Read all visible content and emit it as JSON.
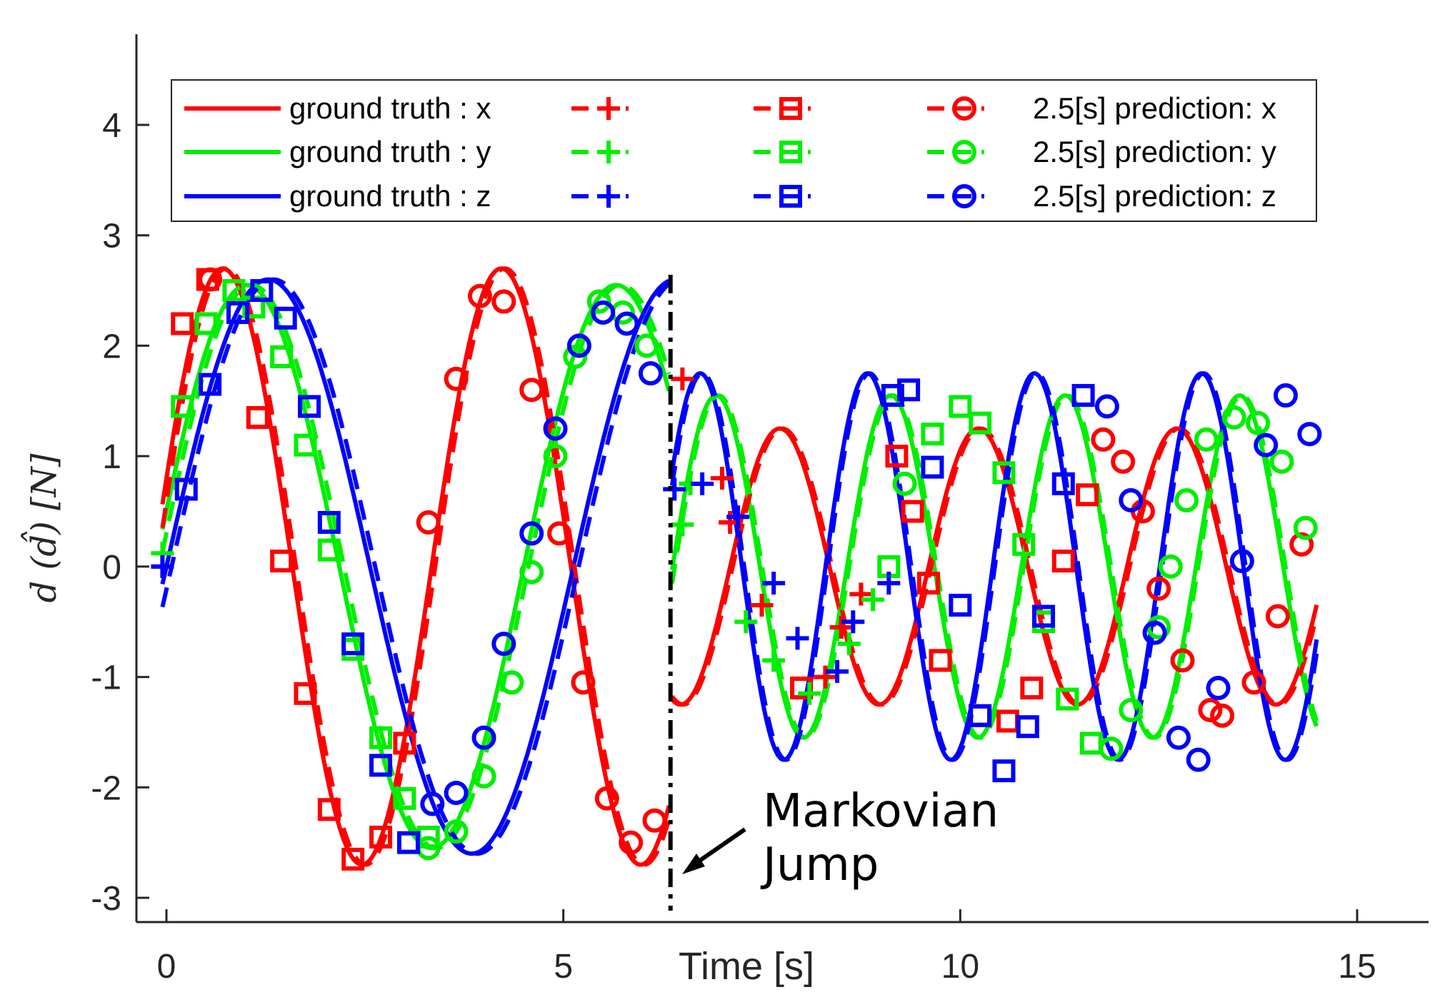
{
  "chart_data": {
    "type": "line",
    "xlabel": "Time [s]",
    "ylabel": "d (d̂) [N]",
    "xlim": [
      -0.4,
      16.3
    ],
    "ylim": [
      -3.22,
      4.82
    ],
    "xticks": [
      0,
      5,
      10,
      15
    ],
    "yticks": [
      -3,
      -2,
      -1,
      0,
      1,
      2,
      3,
      4
    ],
    "colors": {
      "x": "#ff0000",
      "y": "#00ee00",
      "z": "#0000ff"
    },
    "jump_time": 6.35,
    "annotation": {
      "lines": [
        "Markovian",
        "Jump"
      ],
      "points_to": [
        6.55,
        -2.8
      ]
    },
    "legend": {
      "placement": "top",
      "rows": [
        {
          "axis": "x",
          "gt_label": "ground truth : x",
          "pred_label": "2.5[s] prediction: x"
        },
        {
          "axis": "y",
          "gt_label": "ground truth : y",
          "pred_label": "2.5[s] prediction: y"
        },
        {
          "axis": "z",
          "gt_label": "ground truth : z",
          "pred_label": "2.5[s] prediction: z"
        }
      ]
    },
    "signal_params": {
      "x": {
        "before": {
          "amp": 2.7,
          "freq": 0.285,
          "phase": 0.3
        },
        "after": {
          "amp": 1.25,
          "freq": 0.4,
          "phase": 1.0
        }
      },
      "y": {
        "before": {
          "amp": 2.55,
          "freq": 0.215,
          "phase": 0.2
        },
        "after": {
          "amp": 1.55,
          "freq": 0.455,
          "phase": 0.62
        }
      },
      "z": {
        "before": {
          "amp": 2.6,
          "freq": 0.195,
          "phase": 0.0
        },
        "after": {
          "amp": 1.75,
          "freq": 0.475,
          "phase": 0.35
        }
      }
    },
    "series": [
      {
        "name": "ground truth : x",
        "axis": "x",
        "style": "solid"
      },
      {
        "name": "ground truth : y",
        "axis": "y",
        "style": "solid"
      },
      {
        "name": "ground truth : z",
        "axis": "z",
        "style": "solid"
      },
      {
        "name": "2.5[s] prediction: x",
        "axis": "x",
        "style": "dashed",
        "marker": "circle"
      },
      {
        "name": "2.5[s] prediction: y",
        "axis": "y",
        "style": "dashed",
        "marker": "circle"
      },
      {
        "name": "2.5[s] prediction: z",
        "axis": "z",
        "style": "dashed",
        "marker": "circle"
      }
    ],
    "markers": {
      "x": {
        "plus": [
          [
            -0.05,
            0.0
          ],
          [
            6.5,
            1.7
          ],
          [
            7.0,
            0.8
          ],
          [
            7.1,
            0.4
          ],
          [
            7.5,
            -0.35
          ],
          [
            8.3,
            -1.0
          ],
          [
            8.5,
            -0.55
          ],
          [
            8.75,
            -0.25
          ]
        ],
        "square": [
          [
            0.2,
            2.2
          ],
          [
            0.52,
            2.6
          ],
          [
            1.15,
            1.35
          ],
          [
            1.45,
            0.05
          ],
          [
            1.75,
            -1.15
          ],
          [
            2.05,
            -2.2
          ],
          [
            2.35,
            -2.65
          ],
          [
            2.7,
            -2.45
          ],
          [
            3.0,
            -1.6
          ],
          [
            8.0,
            -1.1
          ],
          [
            9.2,
            1.0
          ],
          [
            9.4,
            0.5
          ],
          [
            9.6,
            -0.15
          ],
          [
            9.75,
            -0.85
          ],
          [
            10.25,
            -1.35
          ],
          [
            10.6,
            -1.4
          ],
          [
            10.9,
            -1.1
          ],
          [
            11.3,
            0.05
          ],
          [
            11.6,
            0.65
          ]
        ],
        "circle": [
          [
            0.55,
            2.6
          ],
          [
            3.3,
            0.4
          ],
          [
            3.65,
            1.7
          ],
          [
            3.95,
            2.45
          ],
          [
            4.25,
            2.4
          ],
          [
            4.6,
            1.6
          ],
          [
            4.95,
            0.3
          ],
          [
            5.25,
            -1.05
          ],
          [
            5.55,
            -2.1
          ],
          [
            5.85,
            -2.5
          ],
          [
            6.15,
            -2.3
          ],
          [
            11.8,
            1.15
          ],
          [
            12.05,
            0.95
          ],
          [
            12.3,
            0.5
          ],
          [
            12.5,
            -0.2
          ],
          [
            12.8,
            -0.85
          ],
          [
            13.15,
            -1.3
          ],
          [
            13.3,
            -1.35
          ],
          [
            13.7,
            -1.05
          ],
          [
            14.0,
            -0.45
          ],
          [
            14.3,
            0.2
          ]
        ]
      },
      "y": {
        "plus": [
          [
            -0.05,
            0.12
          ],
          [
            6.5,
            0.38
          ],
          [
            6.6,
            0.75
          ],
          [
            7.3,
            -0.5
          ],
          [
            7.65,
            -0.85
          ],
          [
            8.1,
            -1.15
          ],
          [
            8.6,
            -0.7
          ],
          [
            8.9,
            -0.3
          ]
        ],
        "square": [
          [
            0.2,
            1.45
          ],
          [
            0.5,
            2.2
          ],
          [
            0.85,
            2.5
          ],
          [
            1.1,
            2.35
          ],
          [
            1.45,
            1.9
          ],
          [
            1.75,
            1.1
          ],
          [
            2.05,
            0.15
          ],
          [
            2.35,
            -0.75
          ],
          [
            2.7,
            -1.55
          ],
          [
            3.0,
            -2.1
          ],
          [
            3.3,
            -2.45
          ],
          [
            9.1,
            0.0
          ],
          [
            9.65,
            1.2
          ],
          [
            10.0,
            1.45
          ],
          [
            10.25,
            1.3
          ],
          [
            10.55,
            0.85
          ],
          [
            10.8,
            0.2
          ],
          [
            11.05,
            -0.5
          ],
          [
            11.35,
            -1.2
          ],
          [
            11.65,
            -1.6
          ]
        ],
        "circle": [
          [
            3.3,
            -2.55
          ],
          [
            3.65,
            -2.4
          ],
          [
            4.0,
            -1.9
          ],
          [
            4.35,
            -1.05
          ],
          [
            4.6,
            -0.05
          ],
          [
            4.9,
            1.0
          ],
          [
            5.15,
            1.9
          ],
          [
            5.45,
            2.4
          ],
          [
            5.75,
            2.3
          ],
          [
            6.05,
            2.0
          ],
          [
            9.3,
            0.75
          ],
          [
            11.9,
            -1.65
          ],
          [
            12.15,
            -1.3
          ],
          [
            12.5,
            -0.55
          ],
          [
            12.65,
            0.0
          ],
          [
            12.85,
            0.6
          ],
          [
            13.1,
            1.15
          ],
          [
            13.45,
            1.35
          ],
          [
            13.75,
            1.3
          ],
          [
            14.05,
            0.95
          ],
          [
            14.35,
            0.35
          ]
        ]
      },
      "z": {
        "plus": [
          [
            -0.05,
            0.0
          ],
          [
            6.4,
            0.7
          ],
          [
            6.75,
            0.75
          ],
          [
            7.2,
            0.45
          ],
          [
            7.65,
            -0.15
          ],
          [
            7.95,
            -0.65
          ],
          [
            8.45,
            -0.95
          ],
          [
            8.65,
            -0.5
          ],
          [
            9.1,
            -0.15
          ]
        ],
        "square": [
          [
            0.25,
            0.7
          ],
          [
            0.55,
            1.65
          ],
          [
            0.9,
            2.3
          ],
          [
            1.2,
            2.5
          ],
          [
            1.5,
            2.25
          ],
          [
            1.8,
            1.45
          ],
          [
            2.05,
            0.4
          ],
          [
            2.35,
            -0.7
          ],
          [
            2.7,
            -1.8
          ],
          [
            3.05,
            -2.5
          ],
          [
            9.15,
            1.55
          ],
          [
            9.35,
            1.6
          ],
          [
            9.65,
            0.9
          ],
          [
            10.0,
            -0.35
          ],
          [
            10.25,
            -1.35
          ],
          [
            10.55,
            -1.85
          ],
          [
            10.85,
            -1.45
          ],
          [
            11.05,
            -0.45
          ],
          [
            11.3,
            0.75
          ],
          [
            11.55,
            1.55
          ]
        ],
        "circle": [
          [
            3.35,
            -2.15
          ],
          [
            3.65,
            -2.05
          ],
          [
            4.0,
            -1.55
          ],
          [
            4.25,
            -0.7
          ],
          [
            4.6,
            0.3
          ],
          [
            4.9,
            1.25
          ],
          [
            5.2,
            2.0
          ],
          [
            5.5,
            2.3
          ],
          [
            5.8,
            2.2
          ],
          [
            6.1,
            1.75
          ],
          [
            11.85,
            1.45
          ],
          [
            12.15,
            0.6
          ],
          [
            12.45,
            -0.6
          ],
          [
            12.75,
            -1.55
          ],
          [
            13.0,
            -1.75
          ],
          [
            13.25,
            -1.1
          ],
          [
            13.55,
            0.05
          ],
          [
            13.85,
            1.1
          ],
          [
            14.1,
            1.55
          ],
          [
            14.4,
            1.2
          ]
        ]
      }
    }
  }
}
